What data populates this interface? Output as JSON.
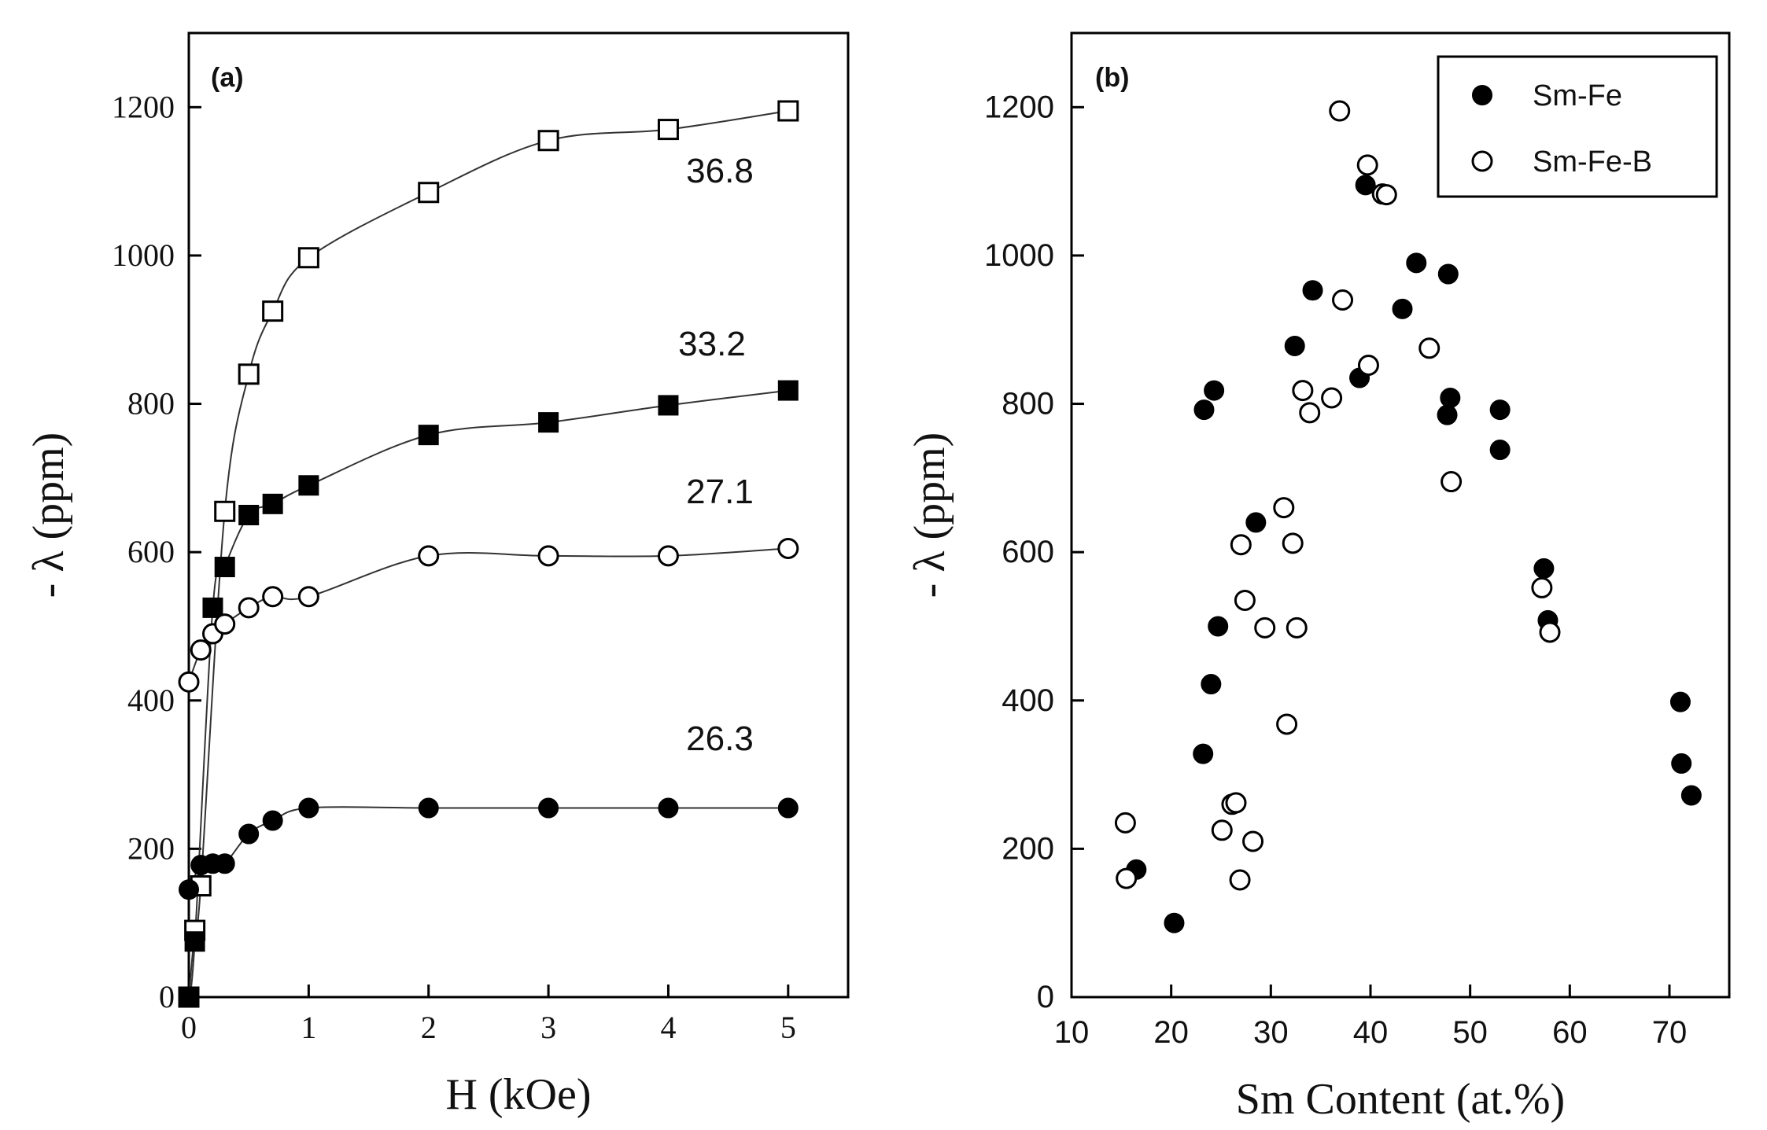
{
  "chart_data": [
    {
      "type": "line",
      "panel_label": "(a)",
      "title": "",
      "xlabel": "H (kOe)",
      "ylabel": "- λ (ppm)",
      "xlim": [
        0,
        5.5
      ],
      "ylim": [
        0,
        1300
      ],
      "xticks": [
        0,
        1,
        2,
        3,
        4,
        5
      ],
      "yticks": [
        0,
        200,
        400,
        600,
        800,
        1000,
        1200
      ],
      "grid": false,
      "series": [
        {
          "name": "36.8",
          "marker": "square-open",
          "x": [
            0,
            0.05,
            0.1,
            0.3,
            0.5,
            0.7,
            1,
            2,
            3,
            4,
            5
          ],
          "y": [
            0,
            90,
            150,
            655,
            840,
            925,
            997,
            1085,
            1155,
            1170,
            1195
          ]
        },
        {
          "name": "33.2",
          "marker": "square-filled",
          "x": [
            0,
            0.05,
            0.2,
            0.3,
            0.5,
            0.7,
            1,
            2,
            3,
            4,
            5
          ],
          "y": [
            0,
            75,
            525,
            580,
            650,
            665,
            690,
            758,
            775,
            798,
            818
          ]
        },
        {
          "name": "27.1",
          "marker": "circle-open",
          "x": [
            0,
            0.1,
            0.2,
            0.3,
            0.5,
            0.7,
            1,
            2,
            3,
            4,
            5
          ],
          "y": [
            425,
            468,
            490,
            503,
            525,
            540,
            540,
            595,
            595,
            595,
            605
          ]
        },
        {
          "name": "26.3",
          "marker": "circle-filled",
          "x": [
            0,
            0.1,
            0.2,
            0.3,
            0.5,
            0.7,
            1,
            2,
            3,
            4,
            5
          ],
          "y": [
            145,
            178,
            180,
            180,
            220,
            238,
            255,
            255,
            255,
            255,
            255
          ]
        }
      ]
    },
    {
      "type": "scatter",
      "panel_label": "(b)",
      "title": "",
      "xlabel": "Sm  Content (at.%)",
      "ylabel": "- λ (ppm)",
      "xlim": [
        10,
        76
      ],
      "ylim": [
        0,
        1300
      ],
      "xticks": [
        10,
        20,
        30,
        40,
        50,
        60,
        70
      ],
      "yticks": [
        0,
        200,
        400,
        600,
        800,
        1000,
        1200
      ],
      "grid": false,
      "legend_position": "top-right",
      "series": [
        {
          "name": "Sm-Fe",
          "marker": "circle-filled",
          "points": [
            [
              16.5,
              172
            ],
            [
              20.3,
              100
            ],
            [
              23.2,
              328
            ],
            [
              23.3,
              792
            ],
            [
              24,
              422
            ],
            [
              24.3,
              818
            ],
            [
              24.7,
              500
            ],
            [
              28.5,
              640
            ],
            [
              32.4,
              878
            ],
            [
              34.2,
              953
            ],
            [
              38.9,
              835
            ],
            [
              39.5,
              1095
            ],
            [
              43.2,
              928
            ],
            [
              44.6,
              990
            ],
            [
              47.8,
              975
            ],
            [
              47.7,
              785
            ],
            [
              48,
              808
            ],
            [
              53,
              792
            ],
            [
              53,
              738
            ],
            [
              57.4,
              578
            ],
            [
              57.8,
              508
            ],
            [
              71.1,
              398
            ],
            [
              71.2,
              315
            ],
            [
              72.2,
              272
            ]
          ]
        },
        {
          "name": "Sm-Fe-B",
          "marker": "circle-open",
          "points": [
            [
              15.4,
              235
            ],
            [
              15.5,
              160
            ],
            [
              25.1,
              225
            ],
            [
              26.1,
              260
            ],
            [
              26.5,
              262
            ],
            [
              26.9,
              158
            ],
            [
              27,
              610
            ],
            [
              27.4,
              535
            ],
            [
              28.2,
              210
            ],
            [
              29.4,
              498
            ],
            [
              31.3,
              660
            ],
            [
              31.6,
              368
            ],
            [
              32.2,
              612
            ],
            [
              32.6,
              498
            ],
            [
              33.2,
              818
            ],
            [
              33.9,
              788
            ],
            [
              36.1,
              808
            ],
            [
              36.9,
              1195
            ],
            [
              37.2,
              940
            ],
            [
              39.7,
              1122
            ],
            [
              39.8,
              852
            ],
            [
              41.2,
              1083
            ],
            [
              41.6,
              1082
            ],
            [
              45.9,
              875
            ],
            [
              48.1,
              695
            ],
            [
              57.2,
              552
            ],
            [
              58,
              492
            ]
          ]
        }
      ]
    }
  ]
}
